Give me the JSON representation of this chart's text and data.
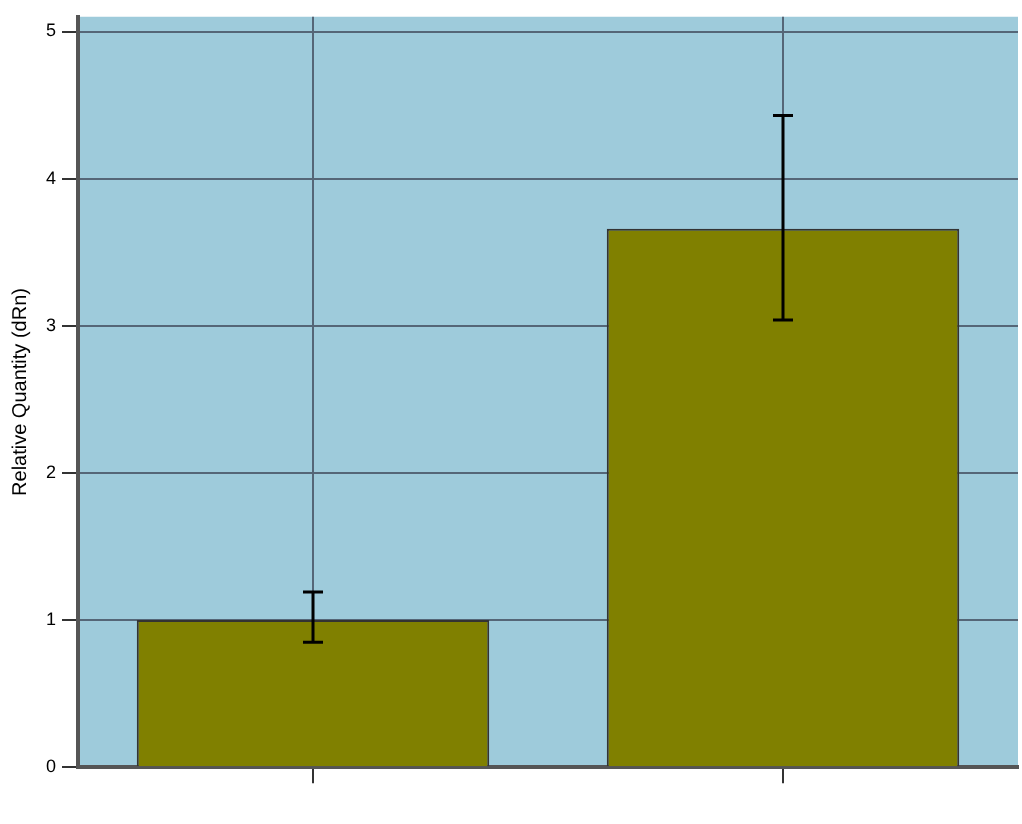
{
  "chart_data": {
    "type": "bar",
    "ylabel": "Relative Quantity (dRn)",
    "categories": [
      null,
      null
    ],
    "values": [
      1.0,
      3.66
    ],
    "color": "#808000",
    "errors": [
      [
        0.85,
        1.19
      ],
      [
        3.04,
        4.43
      ]
    ],
    "ylim": [
      0,
      5.1
    ],
    "yticks": [
      0,
      1,
      2,
      3,
      4,
      5
    ],
    "grid": true
  }
}
